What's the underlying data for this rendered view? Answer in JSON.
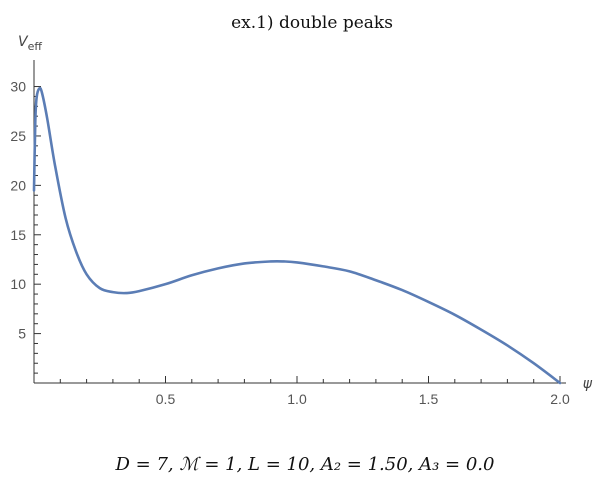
{
  "chart_data": {
    "type": "line",
    "title": "ex.1) double peaks",
    "xlabel": "ψ",
    "ylabel": "V",
    "ylabel_sub": "eff",
    "xlim": [
      0,
      2.0
    ],
    "ylim": [
      0,
      31
    ],
    "xticks": [
      0.5,
      1.0,
      1.5,
      2.0
    ],
    "xtick_labels": [
      "0.5",
      "1.0",
      "1.5",
      "2.0"
    ],
    "yticks": [
      5,
      10,
      15,
      20,
      25,
      30
    ],
    "ytick_labels": [
      "5",
      "10",
      "15",
      "20",
      "25",
      "30"
    ],
    "grid": false,
    "series": [
      {
        "color": "#5b7db5",
        "x": [
          0.0,
          0.005,
          0.01,
          0.02,
          0.03,
          0.05,
          0.08,
          0.12,
          0.16,
          0.2,
          0.25,
          0.3,
          0.35,
          0.4,
          0.5,
          0.6,
          0.7,
          0.8,
          0.9,
          0.95,
          1.0,
          1.1,
          1.2,
          1.3,
          1.4,
          1.5,
          1.6,
          1.7,
          1.8,
          1.9,
          2.0
        ],
        "y": [
          19.5,
          26.5,
          28.9,
          29.8,
          29.4,
          26.8,
          22.0,
          16.7,
          13.3,
          11.0,
          9.6,
          9.2,
          9.1,
          9.3,
          10.0,
          10.9,
          11.6,
          12.1,
          12.3,
          12.3,
          12.2,
          11.8,
          11.3,
          10.4,
          9.4,
          8.2,
          6.9,
          5.4,
          3.8,
          2.0,
          0.0
        ]
      }
    ],
    "caption": "D = 7, ℳ = 1, L = 10, A₂ = 1.50, A₃ = 0.0"
  }
}
